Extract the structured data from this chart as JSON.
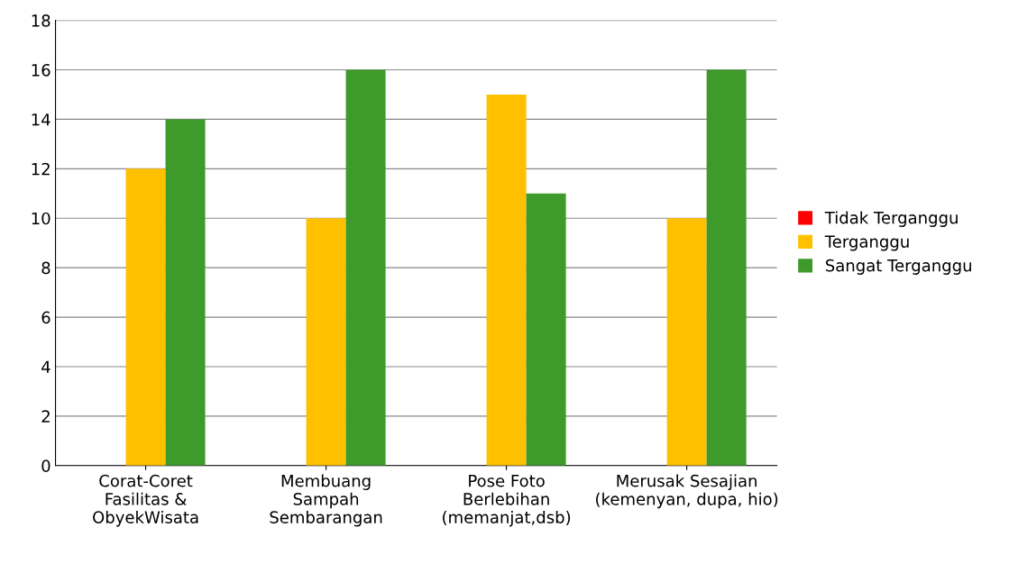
{
  "chart_data": {
    "type": "bar",
    "categories": [
      "Corat-Coret\nFasilitas &\nObyekWisata",
      "Membuang\nSampah\nSembarangan",
      "Pose Foto\nBerlebihan\n(memanjat,dsb)",
      "Merusak Sesajian\n(kemenyan, dupa, hio)"
    ],
    "series": [
      {
        "name": "Tidak Terganggu",
        "color": "#ff0000",
        "values": [
          0,
          0,
          0,
          0
        ]
      },
      {
        "name": "Terganggu",
        "color": "#ffc000",
        "values": [
          12,
          10,
          15,
          10
        ]
      },
      {
        "name": "Sangat Terganggu",
        "color": "#3d9a2b",
        "values": [
          14,
          16,
          11,
          16
        ]
      }
    ],
    "ylim": [
      0,
      18
    ],
    "yticks": [
      0,
      2,
      4,
      6,
      8,
      10,
      12,
      14,
      16,
      18
    ],
    "grid": "y",
    "legend": "right"
  }
}
